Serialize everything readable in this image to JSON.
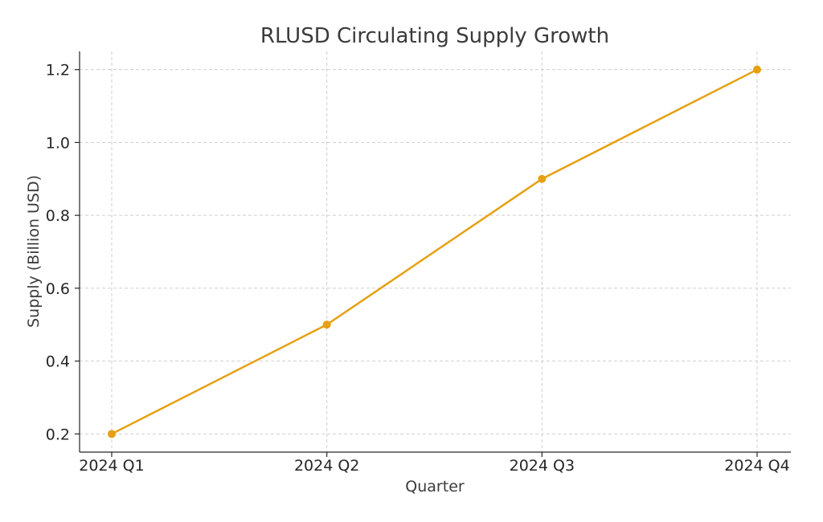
{
  "chart_data": {
    "type": "line",
    "title": "RLUSD Circulating Supply Growth",
    "xlabel": "Quarter",
    "ylabel": "Supply (Billion USD)",
    "categories": [
      "2024 Q1",
      "2024 Q2",
      "2024 Q3",
      "2024 Q4"
    ],
    "series": [
      {
        "values": [
          0.2,
          0.5,
          0.9,
          1.2
        ]
      }
    ],
    "ylim": [
      0.15,
      1.25
    ],
    "yticks": [
      "0.2",
      "0.4",
      "0.6",
      "0.8",
      "1.0",
      "1.2"
    ],
    "grid": true,
    "line_color": "#E6A012",
    "marker": "circle"
  }
}
